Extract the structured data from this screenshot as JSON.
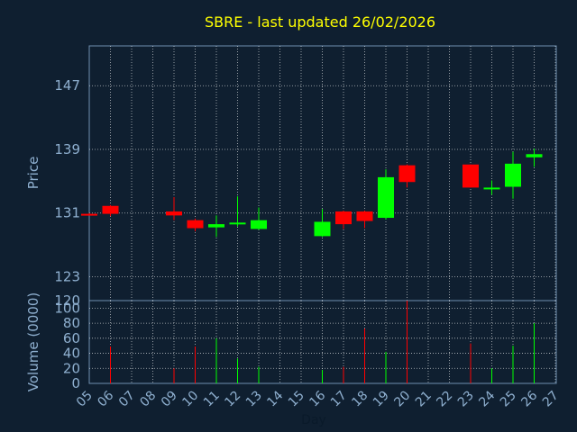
{
  "chart_data": [
    {
      "type": "candlestick",
      "title": "SBRE - last updated 26/02/2026",
      "ylabel": "Price",
      "ylim": [
        120,
        152
      ],
      "yticks": [
        120,
        123,
        131,
        139,
        147
      ],
      "grid": true,
      "colors": {
        "up": "#00ff00",
        "down": "#ff0000",
        "title": "#ffff00",
        "axis_text": "#8fb0d0",
        "background": "#0f1f30",
        "grid": "#ffffff"
      },
      "candles": [
        {
          "day": "05",
          "open": 130.9,
          "high": 131.0,
          "low": 130.8,
          "close": 130.8
        },
        {
          "day": "06",
          "open": 131.9,
          "high": 132.0,
          "low": 130.6,
          "close": 130.9
        },
        {
          "day": "09",
          "open": 131.2,
          "high": 133.0,
          "low": 130.1,
          "close": 130.7
        },
        {
          "day": "10",
          "open": 130.1,
          "high": 130.3,
          "low": 128.7,
          "close": 129.1
        },
        {
          "day": "11",
          "open": 129.2,
          "high": 130.7,
          "low": 128.0,
          "close": 129.6
        },
        {
          "day": "12",
          "open": 129.6,
          "high": 133.1,
          "low": 129.3,
          "close": 129.8
        },
        {
          "day": "13",
          "open": 129.0,
          "high": 131.7,
          "low": 128.9,
          "close": 130.1
        },
        {
          "day": "16",
          "open": 128.1,
          "high": 131.5,
          "low": 128.0,
          "close": 129.9
        },
        {
          "day": "17",
          "open": 131.2,
          "high": 131.3,
          "low": 129.0,
          "close": 129.6
        },
        {
          "day": "18",
          "open": 131.2,
          "high": 131.3,
          "low": 129.1,
          "close": 130.0
        },
        {
          "day": "19",
          "open": 130.4,
          "high": 136.5,
          "low": 130.2,
          "close": 135.5
        },
        {
          "day": "20",
          "open": 137.0,
          "high": 137.1,
          "low": 134.2,
          "close": 134.9
        },
        {
          "day": "23",
          "open": 137.1,
          "high": 137.1,
          "low": 134.2,
          "close": 134.2
        },
        {
          "day": "24",
          "open": 134.0,
          "high": 135.1,
          "low": 133.3,
          "close": 134.2
        },
        {
          "day": "25",
          "open": 134.3,
          "high": 138.7,
          "low": 132.8,
          "close": 137.2
        },
        {
          "day": "26",
          "open": 138.0,
          "high": 139.1,
          "low": 136.8,
          "close": 138.4
        }
      ]
    },
    {
      "type": "bar",
      "ylabel": "Volume (0000)",
      "xlabel": "Day",
      "ylim": [
        0,
        110
      ],
      "yticks": [
        0,
        20,
        40,
        60,
        80,
        100
      ],
      "categories": [
        "05",
        "06",
        "07",
        "08",
        "09",
        "10",
        "11",
        "12",
        "13",
        "14",
        "15",
        "16",
        "17",
        "18",
        "19",
        "20",
        "21",
        "22",
        "23",
        "24",
        "25",
        "26",
        "27"
      ],
      "values": [
        {
          "day": "06",
          "value": 49,
          "direction": "down"
        },
        {
          "day": "09",
          "value": 20,
          "direction": "down"
        },
        {
          "day": "10",
          "value": 49,
          "direction": "down"
        },
        {
          "day": "11",
          "value": 60,
          "direction": "up"
        },
        {
          "day": "12",
          "value": 33,
          "direction": "up"
        },
        {
          "day": "13",
          "value": 22,
          "direction": "up"
        },
        {
          "day": "16",
          "value": 18,
          "direction": "up"
        },
        {
          "day": "17",
          "value": 22,
          "direction": "down"
        },
        {
          "day": "18",
          "value": 73,
          "direction": "down"
        },
        {
          "day": "19",
          "value": 42,
          "direction": "up"
        },
        {
          "day": "20",
          "value": 110,
          "direction": "down"
        },
        {
          "day": "23",
          "value": 53,
          "direction": "down"
        },
        {
          "day": "24",
          "value": 20,
          "direction": "up"
        },
        {
          "day": "25",
          "value": 50,
          "direction": "up"
        },
        {
          "day": "26",
          "value": 80,
          "direction": "up"
        }
      ]
    }
  ]
}
